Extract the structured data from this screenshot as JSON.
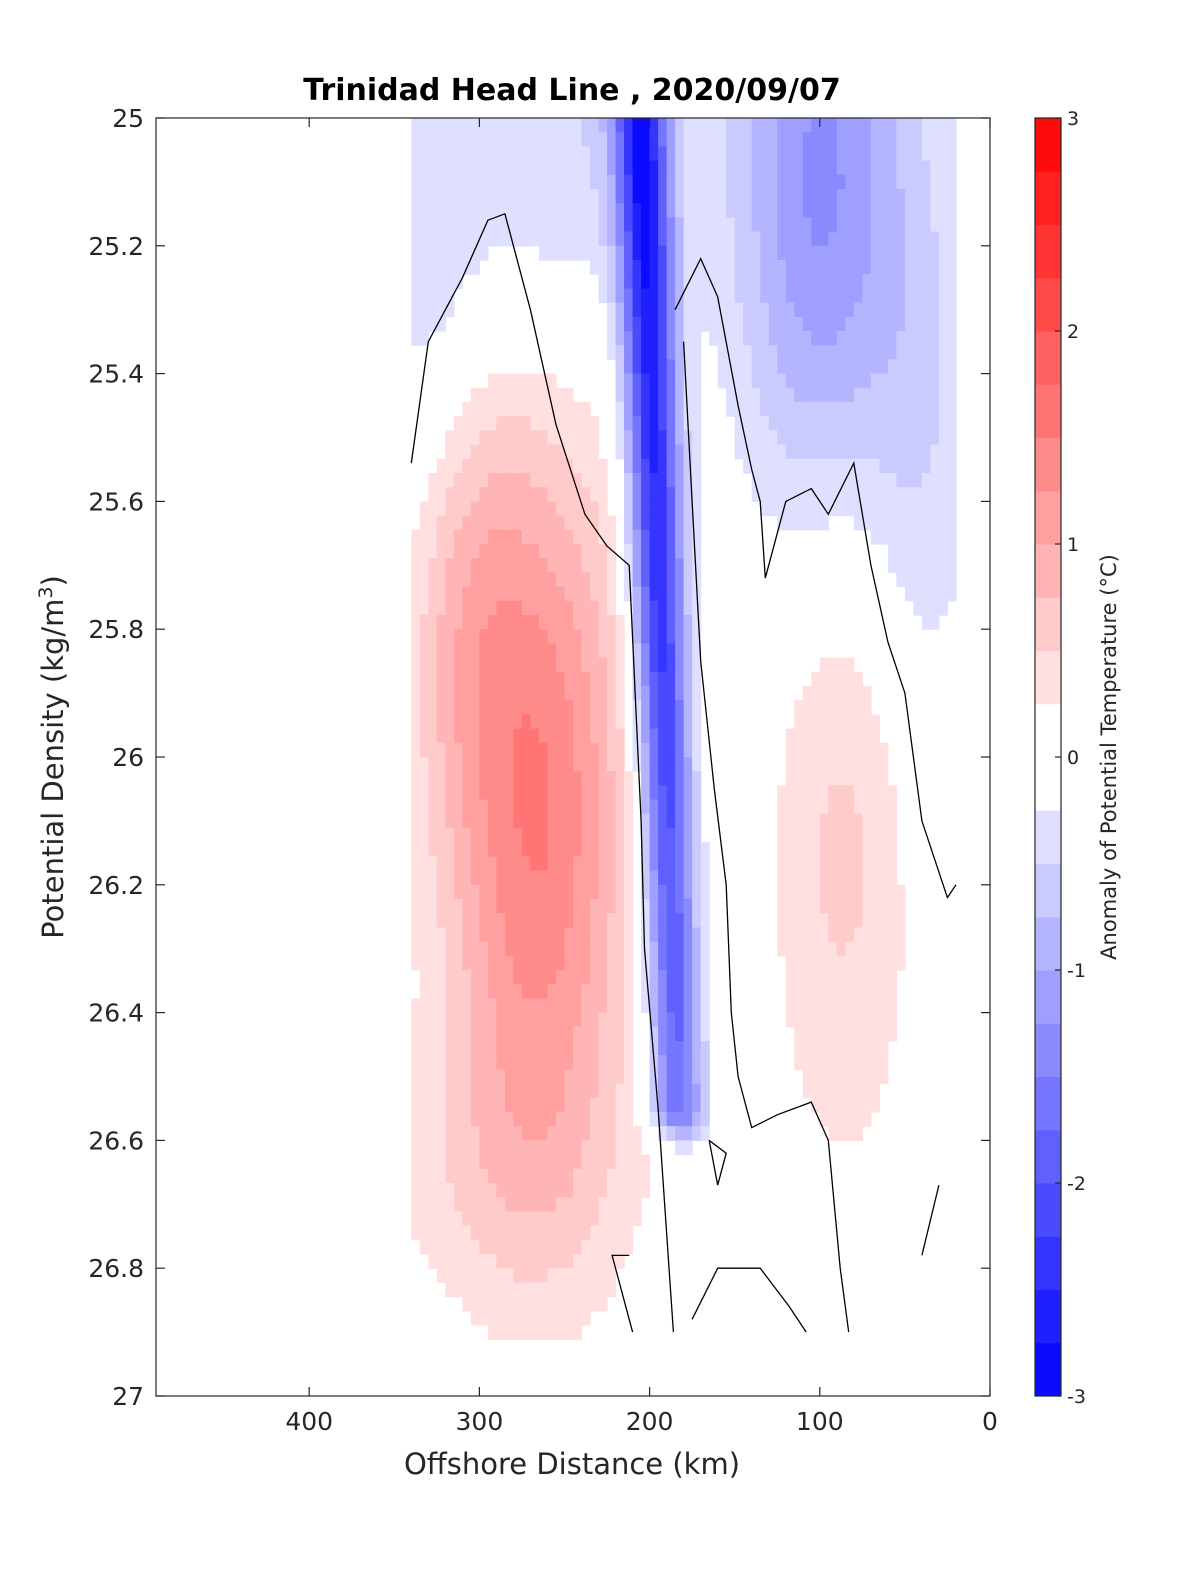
{
  "chart_data": {
    "type": "heatmap",
    "title": "Trinidad Head Line , 2020/09/07",
    "xlabel": "Offshore Distance (km)",
    "ylabel_main": "Potential Density (kg/m",
    "ylabel_sup": "3",
    "ylabel_tail": ")",
    "colorbar_label": "Anomaly of Potential Temperature (°C)",
    "x_reversed": true,
    "xlim": [
      490,
      0
    ],
    "ylim": [
      27,
      25
    ],
    "y_reversed": true,
    "xticks": [
      400,
      300,
      200,
      100,
      0
    ],
    "xtick_labels": [
      "400",
      "300",
      "200",
      "100",
      "0"
    ],
    "yticks": [
      25,
      25.2,
      25.4,
      25.6,
      25.8,
      26,
      26.2,
      26.4,
      26.6,
      26.8,
      27
    ],
    "ytick_labels": [
      "25",
      "25.2",
      "25.4",
      "25.6",
      "25.8",
      "26",
      "26.2",
      "26.4",
      "26.6",
      "26.8",
      "27"
    ],
    "colorbar_range": [
      -3,
      3
    ],
    "colorbar_ticks": [
      -3,
      -2,
      -1,
      0,
      1,
      2,
      3
    ],
    "colorbar_tick_labels": [
      "-3",
      "-2",
      "-1",
      "0",
      "1",
      "2",
      "3"
    ],
    "colorbar_levels": 24,
    "colormap": "blue-white-red",
    "color_low": "#0000ff",
    "color_mid": "#ffffff",
    "color_high": "#ff0000",
    "contour_color": "#000000",
    "data_x_range": [
      20,
      340
    ],
    "features": [
      {
        "desc": "warm core",
        "x_center": 265,
        "y_center": 26.1,
        "peak_anomaly": 1.5
      },
      {
        "desc": "cold band",
        "x_center": 200,
        "y_range": [
          25.0,
          26.55
        ],
        "min_anomaly": -2.6
      },
      {
        "desc": "cold near-surface patch",
        "x_center": 100,
        "y_center": 25.1,
        "min_anomaly": -1.3
      },
      {
        "desc": "weak warm patch",
        "x_center": 85,
        "y_center": 26.1,
        "peak_anomaly": 0.6
      }
    ]
  }
}
